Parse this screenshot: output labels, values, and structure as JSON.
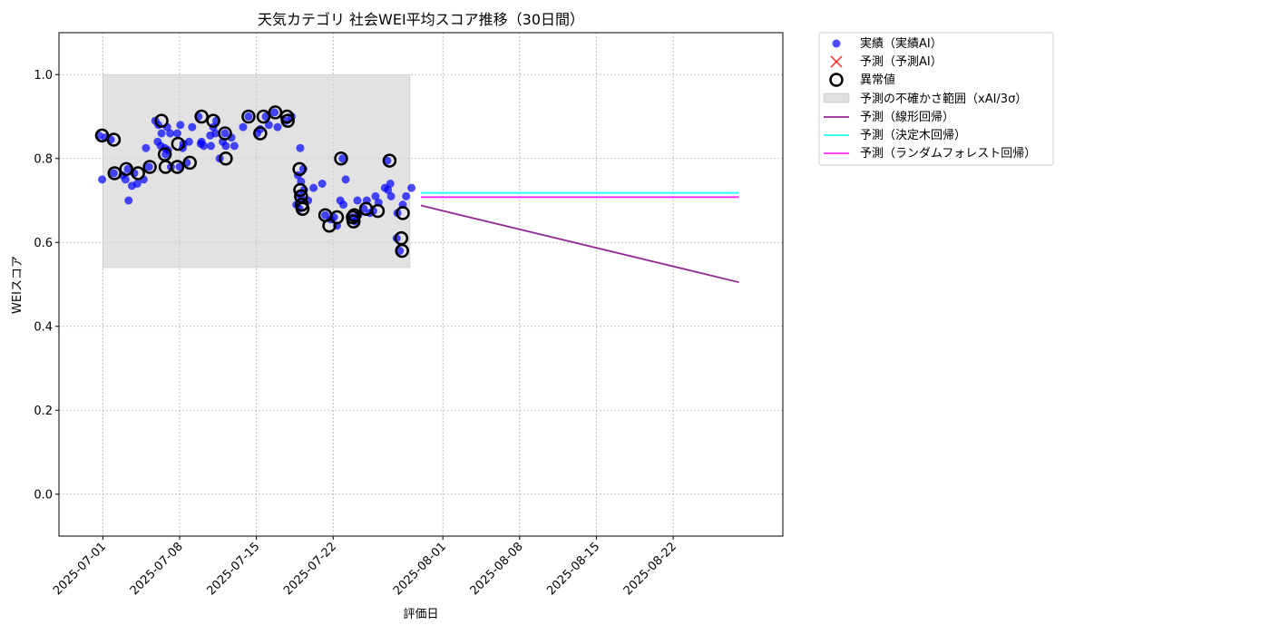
{
  "chart_data": {
    "type": "scatter",
    "title": "天気カテゴリ 社会WEI平均スコア推移（30日間）",
    "xlabel": "評価日",
    "ylabel": "WEIスコア",
    "x_range": [
      "2025-06-27",
      "2025-09-01"
    ],
    "ylim": [
      -0.1,
      1.1
    ],
    "x_ticks": [
      "2025-07-01",
      "2025-07-08",
      "2025-07-15",
      "2025-07-22",
      "2025-08-01",
      "2025-08-08",
      "2025-08-15",
      "2025-08-22"
    ],
    "y_ticks": [
      "0.0",
      "0.2",
      "0.4",
      "0.6",
      "0.8",
      "1.0"
    ],
    "grid": true,
    "legend_position": "outside-right",
    "colors": {
      "actual": "#0000ff",
      "predicted_ai": "#ff0000",
      "anomaly": "#000000",
      "uncertainty": "#d3d3d3",
      "linear": "#800080",
      "tree": "#00ffff",
      "forest": "#ff00ff"
    },
    "legend": {
      "actual": "実績（実績AI）",
      "predicted_ai": "予測（予測AI）",
      "anomaly": "異常値",
      "uncertainty": "予測の不確かさ範囲（xAI/3σ）",
      "linear": "予測（線形回帰）",
      "tree": "予測（決定木回帰）",
      "forest": "予測（ランダムフォレスト回帰）"
    },
    "uncertainty_band": {
      "x_start": "2025-07-01",
      "x_end": "2025-07-29",
      "y_low": 0.54,
      "y_high": 1.0
    },
    "series": [
      {
        "name": "実績（実績AI）",
        "kind": "scatter",
        "points": [
          [
            "2025-07-01",
            0.855
          ],
          [
            "2025-07-01",
            0.75
          ],
          [
            "2025-07-01",
            0.85
          ],
          [
            "2025-07-02",
            0.845
          ],
          [
            "2025-07-02",
            0.765
          ],
          [
            "2025-07-03",
            0.775
          ],
          [
            "2025-07-03",
            0.76
          ],
          [
            "2025-07-03",
            0.75
          ],
          [
            "2025-07-03",
            0.7
          ],
          [
            "2025-07-04",
            0.765
          ],
          [
            "2025-07-04",
            0.74
          ],
          [
            "2025-07-04",
            0.735
          ],
          [
            "2025-07-05",
            0.825
          ],
          [
            "2025-07-05",
            0.78
          ],
          [
            "2025-07-05",
            0.75
          ],
          [
            "2025-07-06",
            0.84
          ],
          [
            "2025-07-06",
            0.83
          ],
          [
            "2025-07-06",
            0.89
          ],
          [
            "2025-07-06",
            0.88
          ],
          [
            "2025-07-06",
            0.86
          ],
          [
            "2025-07-07",
            0.875
          ],
          [
            "2025-07-07",
            0.86
          ],
          [
            "2025-07-07",
            0.825
          ],
          [
            "2025-07-07",
            0.82
          ],
          [
            "2025-07-07",
            0.78
          ],
          [
            "2025-07-07",
            0.81
          ],
          [
            "2025-07-08",
            0.78
          ],
          [
            "2025-07-08",
            0.825
          ],
          [
            "2025-07-08",
            0.86
          ],
          [
            "2025-07-08",
            0.88
          ],
          [
            "2025-07-08",
            0.835
          ],
          [
            "2025-07-09",
            0.84
          ],
          [
            "2025-07-09",
            0.875
          ],
          [
            "2025-07-09",
            0.79
          ],
          [
            "2025-07-10",
            0.835
          ],
          [
            "2025-07-10",
            0.83
          ],
          [
            "2025-07-10",
            0.9
          ],
          [
            "2025-07-10",
            0.84
          ],
          [
            "2025-07-11",
            0.86
          ],
          [
            "2025-07-11",
            0.855
          ],
          [
            "2025-07-11",
            0.875
          ],
          [
            "2025-07-11",
            0.89
          ],
          [
            "2025-07-11",
            0.83
          ],
          [
            "2025-07-12",
            0.86
          ],
          [
            "2025-07-12",
            0.8
          ],
          [
            "2025-07-12",
            0.84
          ],
          [
            "2025-07-12",
            0.83
          ],
          [
            "2025-07-13",
            0.85
          ],
          [
            "2025-07-13",
            0.83
          ],
          [
            "2025-07-14",
            0.9
          ],
          [
            "2025-07-14",
            0.875
          ],
          [
            "2025-07-15",
            0.86
          ],
          [
            "2025-07-15",
            0.87
          ],
          [
            "2025-07-16",
            0.9
          ],
          [
            "2025-07-16",
            0.88
          ],
          [
            "2025-07-17",
            0.91
          ],
          [
            "2025-07-17",
            0.875
          ],
          [
            "2025-07-18",
            0.9
          ],
          [
            "2025-07-18",
            0.89
          ],
          [
            "2025-07-19",
            0.825
          ],
          [
            "2025-07-19",
            0.775
          ],
          [
            "2025-07-19",
            0.76
          ],
          [
            "2025-07-19",
            0.745
          ],
          [
            "2025-07-19",
            0.725
          ],
          [
            "2025-07-19",
            0.715
          ],
          [
            "2025-07-19",
            0.705
          ],
          [
            "2025-07-19",
            0.69
          ],
          [
            "2025-07-19",
            0.68
          ],
          [
            "2025-07-20",
            0.73
          ],
          [
            "2025-07-20",
            0.7
          ],
          [
            "2025-07-21",
            0.74
          ],
          [
            "2025-07-21",
            0.665
          ],
          [
            "2025-07-22",
            0.655
          ],
          [
            "2025-07-22",
            0.66
          ],
          [
            "2025-07-22",
            0.64
          ],
          [
            "2025-07-23",
            0.8
          ],
          [
            "2025-07-23",
            0.75
          ],
          [
            "2025-07-23",
            0.7
          ],
          [
            "2025-07-23",
            0.69
          ],
          [
            "2025-07-24",
            0.7
          ],
          [
            "2025-07-24",
            0.66
          ],
          [
            "2025-07-24",
            0.65
          ],
          [
            "2025-07-24",
            0.665
          ],
          [
            "2025-07-25",
            0.68
          ],
          [
            "2025-07-25",
            0.7
          ],
          [
            "2025-07-25",
            0.67
          ],
          [
            "2025-07-26",
            0.71
          ],
          [
            "2025-07-26",
            0.695
          ],
          [
            "2025-07-26",
            0.675
          ],
          [
            "2025-07-27",
            0.795
          ],
          [
            "2025-07-27",
            0.74
          ],
          [
            "2025-07-27",
            0.73
          ],
          [
            "2025-07-27",
            0.725
          ],
          [
            "2025-07-27",
            0.71
          ],
          [
            "2025-07-28",
            0.61
          ],
          [
            "2025-07-28",
            0.58
          ],
          [
            "2025-07-28",
            0.69
          ],
          [
            "2025-07-28",
            0.67
          ],
          [
            "2025-07-29",
            0.73
          ],
          [
            "2025-07-29",
            0.71
          ]
        ]
      },
      {
        "name": "異常値",
        "kind": "anomaly",
        "points": [
          [
            "2025-07-01",
            0.855
          ],
          [
            "2025-07-02",
            0.845
          ],
          [
            "2025-07-02",
            0.765
          ],
          [
            "2025-07-03",
            0.775
          ],
          [
            "2025-07-04",
            0.765
          ],
          [
            "2025-07-05",
            0.78
          ],
          [
            "2025-07-06",
            0.89
          ],
          [
            "2025-07-07",
            0.81
          ],
          [
            "2025-07-07",
            0.78
          ],
          [
            "2025-07-08",
            0.78
          ],
          [
            "2025-07-08",
            0.835
          ],
          [
            "2025-07-09",
            0.79
          ],
          [
            "2025-07-10",
            0.9
          ],
          [
            "2025-07-11",
            0.89
          ],
          [
            "2025-07-12",
            0.86
          ],
          [
            "2025-07-12",
            0.8
          ],
          [
            "2025-07-14",
            0.9
          ],
          [
            "2025-07-15",
            0.86
          ],
          [
            "2025-07-16",
            0.9
          ],
          [
            "2025-07-17",
            0.91
          ],
          [
            "2025-07-18",
            0.9
          ],
          [
            "2025-07-18",
            0.89
          ],
          [
            "2025-07-19",
            0.775
          ],
          [
            "2025-07-19",
            0.725
          ],
          [
            "2025-07-19",
            0.71
          ],
          [
            "2025-07-19",
            0.69
          ],
          [
            "2025-07-19",
            0.68
          ],
          [
            "2025-07-21",
            0.665
          ],
          [
            "2025-07-22",
            0.66
          ],
          [
            "2025-07-22",
            0.64
          ],
          [
            "2025-07-23",
            0.8
          ],
          [
            "2025-07-24",
            0.66
          ],
          [
            "2025-07-24",
            0.65
          ],
          [
            "2025-07-24",
            0.665
          ],
          [
            "2025-07-25",
            0.68
          ],
          [
            "2025-07-26",
            0.675
          ],
          [
            "2025-07-27",
            0.795
          ],
          [
            "2025-07-28",
            0.61
          ],
          [
            "2025-07-28",
            0.58
          ],
          [
            "2025-07-28",
            0.67
          ]
        ]
      },
      {
        "name": "予測（線形回帰）",
        "kind": "line",
        "points": [
          [
            "2025-07-30",
            0.688
          ],
          [
            "2025-08-28",
            0.505
          ]
        ]
      },
      {
        "name": "予測（決定木回帰）",
        "kind": "line",
        "points": [
          [
            "2025-07-30",
            0.718
          ],
          [
            "2025-08-28",
            0.718
          ]
        ]
      },
      {
        "name": "予測（ランダムフォレスト回帰）",
        "kind": "line",
        "points": [
          [
            "2025-07-30",
            0.708
          ],
          [
            "2025-08-28",
            0.708
          ]
        ]
      }
    ]
  }
}
